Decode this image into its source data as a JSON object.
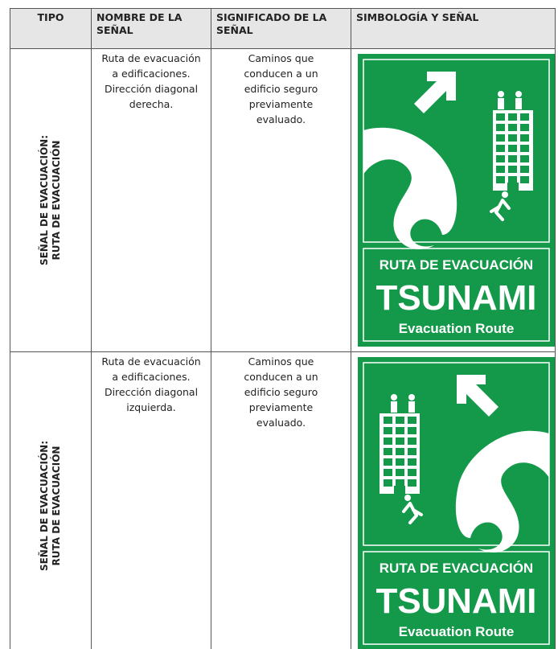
{
  "table": {
    "header": [
      "TIPO",
      "NOMBRE DE LA SEÑAL",
      "SIGNIFICADO DE LA SEÑAL",
      "SIMBOLOGÍA Y SEÑAL"
    ],
    "rows": [
      {
        "tipo": [
          "SEÑAL DE EVACUACIÓN:",
          "RUTA DE EVACUACIÓN"
        ],
        "nombre": "Ruta de evacuación a edificaciones. Dirección diagonal derecha.",
        "significado": "Caminos que conducen a un edificio seguro previamente evaluado.",
        "sign": {
          "line1": "RUTA DE EVACUACIÓN",
          "line2": "TSUNAMI",
          "line3": "Evacuation Route"
        }
      },
      {
        "tipo": [
          "SEÑAL DE EVACUACIÓN:",
          "RUTA DE EVACUACIÓN"
        ],
        "nombre": "Ruta de evacuación a edificaciones. Dirección diagonal izquierda.",
        "significado": "Caminos que conducen a un edificio seguro previamente evaluado.",
        "sign": {
          "line1": "RUTA DE EVACUACIÓN",
          "line2": "TSUNAMI",
          "line3": "Evacuation Route"
        }
      }
    ]
  }
}
